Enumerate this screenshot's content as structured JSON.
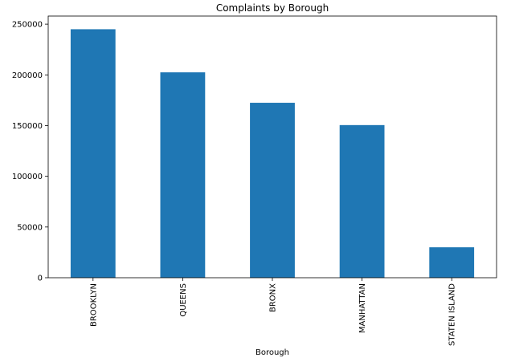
{
  "chart_data": {
    "type": "bar",
    "title": "Complaints by Borough",
    "xlabel": "Borough",
    "ylabel": "",
    "categories": [
      "BROOKLYN",
      "QUEENS",
      "BRONX",
      "MANHATTAN",
      "STATEN ISLAND"
    ],
    "values": [
      245000,
      202500,
      172500,
      150500,
      30000
    ],
    "ylim": [
      0,
      258000
    ],
    "yticks": [
      0,
      50000,
      100000,
      150000,
      200000,
      250000
    ],
    "bar_color": "#1f77b4",
    "grid": false,
    "legend": "none"
  }
}
